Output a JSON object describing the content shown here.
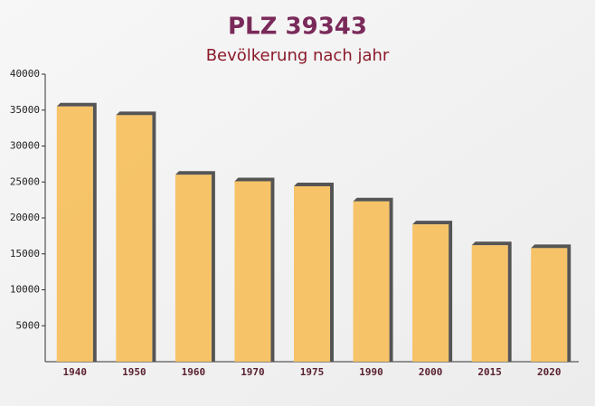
{
  "chart_data": {
    "type": "bar",
    "title": "PLZ 39343",
    "subtitle": "Bevölkerung nach jahr",
    "categories": [
      "1940",
      "1950",
      "1960",
      "1970",
      "1975",
      "1990",
      "2000",
      "2015",
      "2020"
    ],
    "values": [
      35500,
      34300,
      26000,
      25100,
      24400,
      22300,
      19100,
      16200,
      15800
    ],
    "color": "#f6bf5c",
    "ylim": [
      0,
      40000
    ],
    "yticks": [
      5000,
      10000,
      15000,
      20000,
      25000,
      30000,
      35000,
      40000
    ],
    "grid": false
  }
}
